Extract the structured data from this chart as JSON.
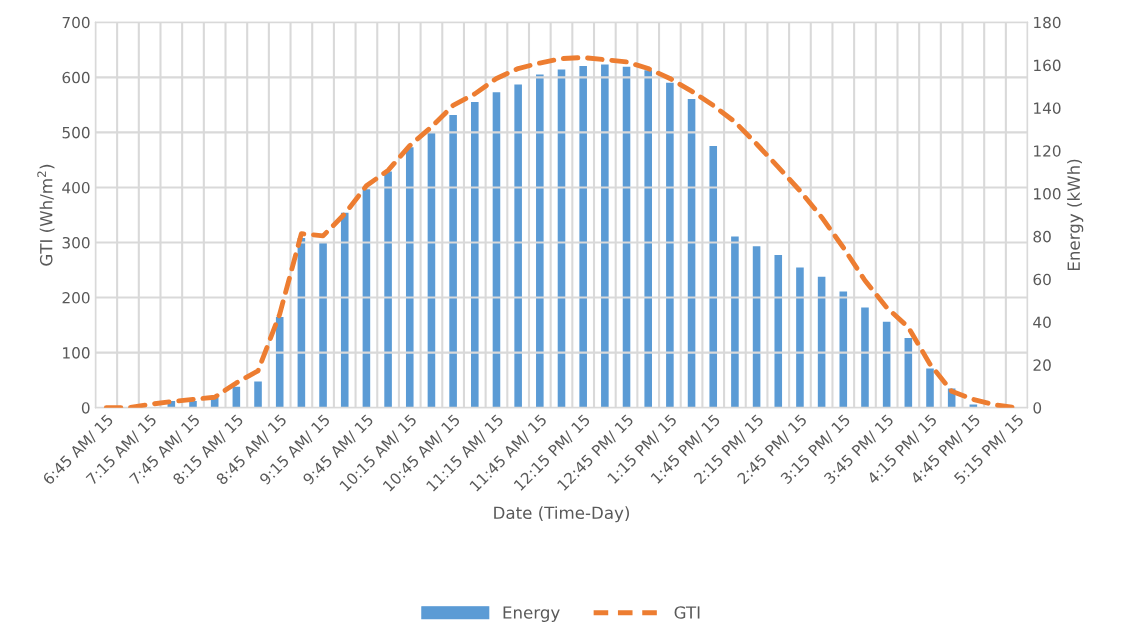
{
  "chart_data": {
    "type": "bar",
    "xlabel": "Date (Time-Day)",
    "ylabel": "GTI (Wh/m$^{2}$)",
    "y2label": "Energy (kWh)",
    "categories": [
      "6:45 AM/ 15",
      null,
      "7:15 AM/ 15",
      null,
      "7:45 AM/ 15",
      null,
      "8:15 AM/ 15",
      null,
      "8:45 AM/ 15",
      null,
      "9:15 AM/ 15",
      null,
      "9:45 AM/ 15",
      null,
      "10:15 AM/ 15",
      null,
      "10:45 AM/ 15",
      null,
      "11:15 AM/ 15",
      null,
      "11:45 AM/ 15",
      null,
      "12:15 PM/ 15",
      null,
      "12:45 PM/ 15",
      null,
      "1:15 PM/ 15",
      null,
      "1:45 PM/ 15",
      null,
      "2:15 PM/ 15",
      null,
      "2:45 PM/ 15",
      null,
      "3:15 PM/ 15",
      null,
      "3:45 PM/ 15",
      null,
      "4:15 PM/ 15",
      null,
      "4:45 PM/ 15",
      null,
      "5:15 PM/ 15"
    ],
    "series": [
      {
        "name": "Energy",
        "axis": "y2",
        "color": "#5b9bd5",
        "values": [
          0,
          0,
          0,
          3.1,
          3.1,
          4.7,
          9.8,
          12.2,
          42.4,
          79.3,
          77.3,
          91,
          102,
          110.3,
          121.6,
          128.3,
          136.7,
          142.8,
          147.3,
          151,
          155.6,
          158,
          159.6,
          160.3,
          159.2,
          157.6,
          151.8,
          144.2,
          122.2,
          80,
          75.4,
          71.3,
          65.5,
          61.2,
          54.3,
          46.8,
          40.1,
          32.6,
          18.3,
          9.0,
          1.5,
          null,
          0
        ]
      },
      {
        "name": "GTI",
        "type": "line",
        "line_style": "dashed",
        "color": "#ed7d31",
        "values": [
          0,
          0,
          6,
          11,
          15,
          19,
          45,
          67,
          170,
          316,
          312,
          352,
          403,
          431,
          476,
          510,
          549,
          570,
          598,
          616,
          626,
          634,
          636,
          632,
          628,
          616,
          598,
          575,
          549,
          519,
          479,
          437,
          394,
          346,
          291,
          231,
          182,
          146,
          79,
          30,
          15,
          5,
          0
        ]
      }
    ],
    "ylim": [
      0,
      700
    ],
    "yticks": [
      0,
      100,
      200,
      300,
      400,
      500,
      600,
      700
    ],
    "y2lim": [
      0,
      180
    ],
    "y2ticks": [
      0,
      20,
      40,
      60,
      80,
      100,
      120,
      140,
      160,
      180
    ],
    "grid": true,
    "legend": "bottom"
  }
}
